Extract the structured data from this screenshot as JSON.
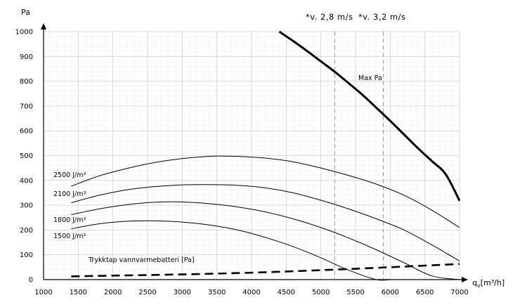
{
  "chart_data": {
    "type": "line",
    "title": "",
    "ylabel": "Pa",
    "xlabel_main": "q",
    "xlabel_sub": "v",
    "xlabel_unit": "[m³/h]",
    "xlim": [
      1000,
      7000
    ],
    "ylim": [
      0,
      1000
    ],
    "xticks": [
      1000,
      1500,
      2000,
      2500,
      3000,
      3500,
      4000,
      4500,
      5000,
      5500,
      6000,
      6500,
      7000
    ],
    "yticks": [
      0,
      100,
      200,
      300,
      400,
      500,
      600,
      700,
      800,
      900,
      1000
    ],
    "grid": true,
    "series": [
      {
        "name": "Max Pa",
        "style": "solid-thick",
        "x": [
          4400,
          4600,
          4800,
          5000,
          5200,
          5400,
          5600,
          5800,
          6000,
          6200,
          6400,
          6600,
          6800,
          7000
        ],
        "y": [
          1000,
          962,
          922,
          880,
          838,
          792,
          745,
          693,
          640,
          585,
          530,
          478,
          425,
          318
        ]
      },
      {
        "name": "2500 J/m³",
        "style": "solid",
        "x": [
          1400,
          1800,
          2200,
          2600,
          3000,
          3400,
          3600,
          3800,
          4200,
          4600,
          5000,
          5400,
          5800,
          6200,
          6600,
          7000
        ],
        "y": [
          377,
          418,
          448,
          472,
          488,
          497,
          498,
          497,
          490,
          475,
          450,
          420,
          385,
          340,
          280,
          210
        ]
      },
      {
        "name": "2100 J/m³",
        "style": "solid",
        "x": [
          1400,
          1800,
          2200,
          2600,
          3000,
          3400,
          3800,
          4200,
          4600,
          5000,
          5400,
          5800,
          6200,
          6600,
          7000
        ],
        "y": [
          310,
          340,
          362,
          375,
          382,
          383,
          380,
          370,
          350,
          320,
          285,
          245,
          200,
          140,
          75
        ]
      },
      {
        "name": "1800 J/m³",
        "style": "solid",
        "x": [
          1400,
          1800,
          2200,
          2600,
          3000,
          3400,
          3800,
          4200,
          4600,
          5000,
          5400,
          5800,
          6200,
          6600,
          7000
        ],
        "y": [
          262,
          285,
          302,
          312,
          313,
          306,
          293,
          273,
          245,
          210,
          168,
          120,
          68,
          15,
          0
        ]
      },
      {
        "name": "1500 J/m³",
        "style": "solid",
        "x": [
          1400,
          1800,
          2200,
          2600,
          3000,
          3400,
          3800,
          4200,
          4600,
          5000,
          5400,
          5800,
          6000
        ],
        "y": [
          205,
          225,
          235,
          237,
          232,
          220,
          200,
          170,
          133,
          88,
          38,
          0,
          0
        ]
      },
      {
        "name": "Trykktap vannvarmebatteri [Pa]",
        "style": "dashed-thick",
        "x": [
          1400,
          2000,
          3000,
          4000,
          5000,
          6000,
          7000
        ],
        "y": [
          13,
          16,
          21,
          28,
          38,
          50,
          63
        ]
      }
    ],
    "reference_lines": [
      {
        "label": "*v. 2,8 m/s",
        "x": 5200
      },
      {
        "label": "*v. 3,2 m/s",
        "x": 5900
      }
    ]
  }
}
